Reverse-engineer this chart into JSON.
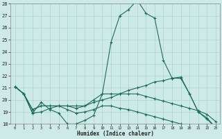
{
  "xlabel": "Humidex (Indice chaleur)",
  "bg_color": "#ceeae6",
  "grid_color": "#aad4ce",
  "line_color": "#1a6b5e",
  "xlim": [
    0,
    23
  ],
  "ylim": [
    18,
    28
  ],
  "yticks": [
    18,
    19,
    20,
    21,
    22,
    23,
    24,
    25,
    26,
    27,
    28
  ],
  "xtick_labels": [
    "0",
    "1",
    "2",
    "3",
    "4",
    "5",
    "6",
    "7",
    "8",
    "9",
    "10",
    "11",
    "12",
    "13",
    "14",
    "15",
    "16",
    "17",
    "18",
    "19",
    "20",
    "21",
    "22",
    "23"
  ],
  "series": [
    [
      21.1,
      20.5,
      18.9,
      19.8,
      19.2,
      18.9,
      18.0,
      18.0,
      18.3,
      18.7,
      20.5,
      24.8,
      27.0,
      27.5,
      28.3,
      27.2,
      26.8,
      23.3,
      21.8,
      21.8,
      20.5,
      19.0,
      18.4,
      17.7
    ],
    [
      21.1,
      20.5,
      18.9,
      19.0,
      19.3,
      19.5,
      19.5,
      19.3,
      19.5,
      20.0,
      20.5,
      20.5,
      20.5,
      20.5,
      20.5,
      20.3,
      20.1,
      19.9,
      19.7,
      19.5,
      19.3,
      19.1,
      18.8,
      18.2
    ],
    [
      21.1,
      20.5,
      19.2,
      19.5,
      19.5,
      19.5,
      19.5,
      19.5,
      19.5,
      19.8,
      20.0,
      20.2,
      20.5,
      20.8,
      21.0,
      21.2,
      21.5,
      21.6,
      21.8,
      21.9,
      20.5,
      19.0,
      18.5,
      17.7
    ],
    [
      21.1,
      20.5,
      19.2,
      19.5,
      19.5,
      19.5,
      19.2,
      18.9,
      19.0,
      19.2,
      19.5,
      19.5,
      19.3,
      19.2,
      19.0,
      18.8,
      18.6,
      18.4,
      18.2,
      18.0,
      17.9,
      17.8,
      17.7,
      17.7
    ]
  ]
}
